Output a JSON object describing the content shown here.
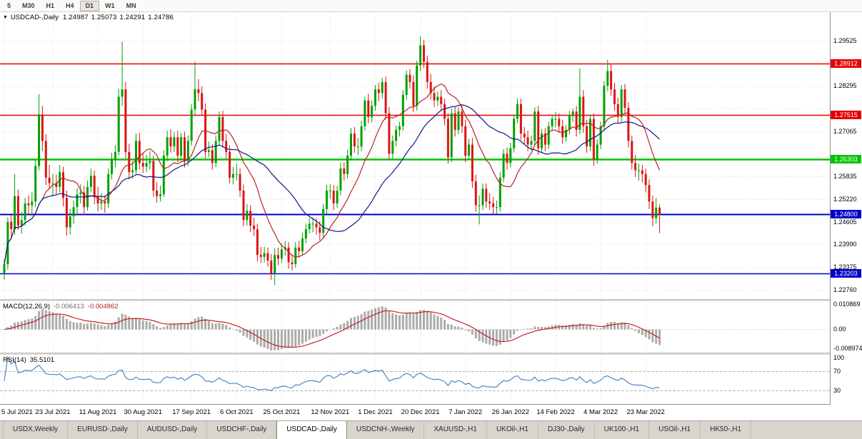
{
  "toolbar": {
    "timeframes": [
      {
        "label": "5",
        "active": false
      },
      {
        "label": "M30",
        "active": false
      },
      {
        "label": "H1",
        "active": false
      },
      {
        "label": "H4",
        "active": false
      },
      {
        "label": "D1",
        "active": true
      },
      {
        "label": "W1",
        "active": false
      },
      {
        "label": "MN",
        "active": false
      }
    ]
  },
  "chart": {
    "collapse_glyph": "▼",
    "symbol_label": "USDCAD-,Daily",
    "ohlc": {
      "open": "1.24987",
      "high": "1.25073",
      "low": "1.24291",
      "close": "1.24786"
    }
  },
  "price_axis": {
    "ticks": [
      "1.29525",
      "1.28295",
      "1.27065",
      "1.25835",
      "1.25220",
      "1.24605",
      "1.23990",
      "1.23375",
      "1.22760"
    ]
  },
  "indicators": {
    "macd": {
      "name": "MACD(12,26,9)",
      "value_main": "-0.006413",
      "value_signal": "-0.004862",
      "fast": 12,
      "slow": 26,
      "signal": 9,
      "ylim": [
        -0.008974,
        0.010869
      ],
      "axis": [
        "0.010869",
        "0.00",
        "-0.008974"
      ]
    },
    "rsi": {
      "name": "RSI(14)",
      "value": "35.5101",
      "period": 14,
      "ylim": [
        0,
        105
      ],
      "levels": [
        70,
        30
      ],
      "axis": [
        "100",
        "70",
        "30"
      ]
    }
  },
  "tabs": {
    "items": [
      "USDX,Weekly",
      "EURUSD-,Daily",
      "AUDUSD-,Daily",
      "USDCHF-,Daily",
      "USDCAD-,Daily",
      "USDCNH-,Weekly",
      "XAUUSD-,H1",
      "UKOil-,H1",
      "DJ30-,Daily",
      "UK100-,H1",
      "USOil-,H1",
      "HK50-,H1"
    ],
    "active_index": 4
  },
  "colors": {
    "bull": "#00A000",
    "bear": "#DC1414",
    "grid": "#E2E2E2",
    "hist": "#ABABAB",
    "signal": "#C01414",
    "rsi_line": "#3E7EC1",
    "rsi_level": "#B9B9B9"
  },
  "chart_data": {
    "type": "candlestick",
    "title": "USDCAD-,Daily",
    "ylim": [
      1.225,
      1.303
    ],
    "grid": {
      "top": 1.29525,
      "step": 0.00615,
      "count": 12
    },
    "x_labels": [
      "5 Jul 2021",
      "23 Jul 2021",
      "11 Aug 2021",
      "30 Aug 2021",
      "17 Sep 2021",
      "6 Oct 2021",
      "25 Oct 2021",
      "12 Nov 2021",
      "1 Dec 2021",
      "20 Dec 2021",
      "7 Jan 2022",
      "26 Jan 2022",
      "14 Feb 2022",
      "4 Mar 2022",
      "23 Mar 2022"
    ],
    "x_label_indices": [
      0,
      14,
      27,
      40,
      54,
      67,
      80,
      94,
      107,
      120,
      133,
      146,
      159,
      172,
      185
    ],
    "overlays": [
      {
        "name": "ma-fast",
        "type": "sma",
        "period": 12,
        "color": "#BB2222"
      },
      {
        "name": "ma-slow",
        "type": "sma",
        "period": 30,
        "color": "#14148C"
      }
    ],
    "h_lines": [
      {
        "price": 1.28912,
        "label": "1.28912",
        "color": "#E60000",
        "width": 1.4
      },
      {
        "price": 1.27515,
        "label": "1.27515",
        "color": "#E60000",
        "width": 1.4
      },
      {
        "price": 1.26303,
        "label": "1.26303",
        "color": "#00C400",
        "width": 2.6
      },
      {
        "price": 1.248,
        "label": "1.24800",
        "color": "#0000C8",
        "width": 2
      },
      {
        "price": 1.23203,
        "label": "1.23203",
        "color": "#0000C8",
        "width": 1.4
      }
    ],
    "candles": [
      [
        1.232,
        1.2358,
        1.2303,
        1.2345
      ],
      [
        1.2345,
        1.2472,
        1.233,
        1.246
      ],
      [
        1.246,
        1.2478,
        1.2415,
        1.244
      ],
      [
        1.244,
        1.259,
        1.2425,
        1.253
      ],
      [
        1.253,
        1.2548,
        1.2438,
        1.245
      ],
      [
        1.245,
        1.2488,
        1.2428,
        1.2465
      ],
      [
        1.2465,
        1.2525,
        1.245,
        1.251
      ],
      [
        1.251,
        1.2532,
        1.248,
        1.2505
      ],
      [
        1.2505,
        1.254,
        1.2482,
        1.2515
      ],
      [
        1.2515,
        1.2628,
        1.25,
        1.2612
      ],
      [
        1.2612,
        1.2807,
        1.26,
        1.2752
      ],
      [
        1.2752,
        1.2775,
        1.2652,
        1.268
      ],
      [
        1.268,
        1.2698,
        1.256,
        1.258
      ],
      [
        1.258,
        1.2615,
        1.2548,
        1.2565
      ],
      [
        1.2565,
        1.259,
        1.253,
        1.2565
      ],
      [
        1.2565,
        1.2588,
        1.2535,
        1.2555
      ],
      [
        1.2555,
        1.2615,
        1.254,
        1.2595
      ],
      [
        1.2595,
        1.261,
        1.2502,
        1.2525
      ],
      [
        1.2525,
        1.2545,
        1.2422,
        1.2445
      ],
      [
        1.2445,
        1.2495,
        1.2425,
        1.2475
      ],
      [
        1.2475,
        1.2518,
        1.2455,
        1.25
      ],
      [
        1.25,
        1.2552,
        1.248,
        1.2535
      ],
      [
        1.2535,
        1.2562,
        1.251,
        1.254
      ],
      [
        1.254,
        1.2558,
        1.2478,
        1.25
      ],
      [
        1.25,
        1.2572,
        1.249,
        1.2555
      ],
      [
        1.2555,
        1.2605,
        1.254,
        1.2585
      ],
      [
        1.2585,
        1.26,
        1.2508,
        1.253
      ],
      [
        1.253,
        1.2555,
        1.2488,
        1.251
      ],
      [
        1.251,
        1.2538,
        1.2492,
        1.2515
      ],
      [
        1.2515,
        1.2532,
        1.2485,
        1.251
      ],
      [
        1.251,
        1.2605,
        1.2498,
        1.259
      ],
      [
        1.259,
        1.2648,
        1.2575,
        1.263
      ],
      [
        1.263,
        1.2668,
        1.2608,
        1.265
      ],
      [
        1.265,
        1.2822,
        1.264,
        1.28
      ],
      [
        1.28,
        1.2949,
        1.2775,
        1.282
      ],
      [
        1.282,
        1.284,
        1.2632,
        1.265
      ],
      [
        1.265,
        1.2672,
        1.2575,
        1.2595
      ],
      [
        1.2595,
        1.2625,
        1.2578,
        1.26
      ],
      [
        1.26,
        1.27,
        1.259,
        1.268
      ],
      [
        1.268,
        1.2702,
        1.2602,
        1.262
      ],
      [
        1.262,
        1.2648,
        1.2592,
        1.261
      ],
      [
        1.261,
        1.2642,
        1.2595,
        1.262
      ],
      [
        1.262,
        1.2652,
        1.2602,
        1.2625
      ],
      [
        1.2625,
        1.264,
        1.2528,
        1.2545
      ],
      [
        1.2545,
        1.2568,
        1.2512,
        1.253
      ],
      [
        1.253,
        1.2558,
        1.2515,
        1.2535
      ],
      [
        1.2535,
        1.2655,
        1.2528,
        1.264
      ],
      [
        1.264,
        1.2708,
        1.2625,
        1.269
      ],
      [
        1.269,
        1.2712,
        1.2648,
        1.2665
      ],
      [
        1.2665,
        1.2705,
        1.265,
        1.269
      ],
      [
        1.269,
        1.2708,
        1.2622,
        1.264
      ],
      [
        1.264,
        1.2702,
        1.2628,
        1.269
      ],
      [
        1.269,
        1.2705,
        1.2608,
        1.2625
      ],
      [
        1.2625,
        1.2695,
        1.2612,
        1.268
      ],
      [
        1.268,
        1.278,
        1.2668,
        1.2765
      ],
      [
        1.2765,
        1.2896,
        1.275,
        1.282
      ],
      [
        1.282,
        1.2848,
        1.2788,
        1.281
      ],
      [
        1.281,
        1.2828,
        1.2748,
        1.2765
      ],
      [
        1.2765,
        1.2782,
        1.2632,
        1.265
      ],
      [
        1.265,
        1.2678,
        1.2635,
        1.2655
      ],
      [
        1.2655,
        1.2672,
        1.2602,
        1.262
      ],
      [
        1.262,
        1.2695,
        1.2608,
        1.268
      ],
      [
        1.268,
        1.276,
        1.2668,
        1.2745
      ],
      [
        1.2745,
        1.2762,
        1.2662,
        1.268
      ],
      [
        1.268,
        1.2698,
        1.2632,
        1.265
      ],
      [
        1.265,
        1.2668,
        1.2565,
        1.258
      ],
      [
        1.258,
        1.261,
        1.2562,
        1.259
      ],
      [
        1.259,
        1.2618,
        1.2572,
        1.259
      ],
      [
        1.259,
        1.2605,
        1.2528,
        1.2545
      ],
      [
        1.2545,
        1.2562,
        1.2448,
        1.2465
      ],
      [
        1.2465,
        1.2508,
        1.245,
        1.249
      ],
      [
        1.249,
        1.2505,
        1.2432,
        1.245
      ],
      [
        1.245,
        1.2472,
        1.2422,
        1.244
      ],
      [
        1.244,
        1.2455,
        1.2352,
        1.237
      ],
      [
        1.237,
        1.2392,
        1.2348,
        1.2365
      ],
      [
        1.2365,
        1.2392,
        1.235,
        1.2375
      ],
      [
        1.2375,
        1.239,
        1.2338,
        1.2355
      ],
      [
        1.2355,
        1.2372,
        1.2302,
        1.232
      ],
      [
        1.232,
        1.2388,
        1.2288,
        1.237
      ],
      [
        1.237,
        1.239,
        1.2342,
        1.236
      ],
      [
        1.236,
        1.2402,
        1.2348,
        1.2385
      ],
      [
        1.2385,
        1.2408,
        1.2368,
        1.239
      ],
      [
        1.239,
        1.2405,
        1.2332,
        1.235
      ],
      [
        1.235,
        1.2372,
        1.2328,
        1.2345
      ],
      [
        1.2345,
        1.2405,
        1.2335,
        1.239
      ],
      [
        1.239,
        1.2408,
        1.2362,
        1.238
      ],
      [
        1.238,
        1.243,
        1.2368,
        1.2415
      ],
      [
        1.2415,
        1.2455,
        1.2402,
        1.244
      ],
      [
        1.244,
        1.247,
        1.2428,
        1.2455
      ],
      [
        1.2455,
        1.2472,
        1.2432,
        1.2455
      ],
      [
        1.2455,
        1.247,
        1.2425,
        1.2445
      ],
      [
        1.2445,
        1.2462,
        1.241,
        1.243
      ],
      [
        1.243,
        1.2508,
        1.2418,
        1.2495
      ],
      [
        1.2495,
        1.256,
        1.2482,
        1.2545
      ],
      [
        1.2545,
        1.2562,
        1.2522,
        1.2545
      ],
      [
        1.2545,
        1.256,
        1.2492,
        1.251
      ],
      [
        1.251,
        1.2558,
        1.2498,
        1.2545
      ],
      [
        1.2545,
        1.262,
        1.2532,
        1.2605
      ],
      [
        1.2605,
        1.2622,
        1.2572,
        1.259
      ],
      [
        1.259,
        1.2655,
        1.2578,
        1.264
      ],
      [
        1.264,
        1.2715,
        1.2628,
        1.27
      ],
      [
        1.27,
        1.2718,
        1.2648,
        1.2665
      ],
      [
        1.2665,
        1.2688,
        1.2642,
        1.2665
      ],
      [
        1.2665,
        1.2735,
        1.2652,
        1.272
      ],
      [
        1.272,
        1.28,
        1.2708,
        1.279
      ],
      [
        1.279,
        1.2808,
        1.2728,
        1.2745
      ],
      [
        1.2745,
        1.279,
        1.273,
        1.2775
      ],
      [
        1.2775,
        1.2832,
        1.2762,
        1.282
      ],
      [
        1.282,
        1.2838,
        1.2788,
        1.281
      ],
      [
        1.281,
        1.2852,
        1.2795,
        1.284
      ],
      [
        1.284,
        1.2855,
        1.2738,
        1.2755
      ],
      [
        1.2755,
        1.2772,
        1.2628,
        1.2645
      ],
      [
        1.2645,
        1.2695,
        1.2632,
        1.268
      ],
      [
        1.268,
        1.2722,
        1.2665,
        1.271
      ],
      [
        1.271,
        1.2732,
        1.2692,
        1.272
      ],
      [
        1.272,
        1.2818,
        1.2708,
        1.2805
      ],
      [
        1.2805,
        1.2872,
        1.2792,
        1.286
      ],
      [
        1.286,
        1.2875,
        1.2822,
        1.284
      ],
      [
        1.284,
        1.2858,
        1.2758,
        1.2775
      ],
      [
        1.2775,
        1.2898,
        1.2762,
        1.2885
      ],
      [
        1.2885,
        1.2964,
        1.287,
        1.294
      ],
      [
        1.294,
        1.2955,
        1.2878,
        1.2895
      ],
      [
        1.2895,
        1.2912,
        1.2822,
        1.284
      ],
      [
        1.284,
        1.2862,
        1.2792,
        1.281
      ],
      [
        1.281,
        1.2828,
        1.2772,
        1.279
      ],
      [
        1.279,
        1.2815,
        1.2775,
        1.28
      ],
      [
        1.28,
        1.2818,
        1.2762,
        1.278
      ],
      [
        1.278,
        1.2795,
        1.2722,
        1.274
      ],
      [
        1.274,
        1.2755,
        1.2618,
        1.2635
      ],
      [
        1.2635,
        1.2768,
        1.2622,
        1.2755
      ],
      [
        1.2755,
        1.2772,
        1.2692,
        1.271
      ],
      [
        1.271,
        1.2772,
        1.2698,
        1.276
      ],
      [
        1.276,
        1.2778,
        1.2702,
        1.272
      ],
      [
        1.272,
        1.2738,
        1.2622,
        1.264
      ],
      [
        1.264,
        1.2685,
        1.2628,
        1.267
      ],
      [
        1.267,
        1.2688,
        1.2552,
        1.257
      ],
      [
        1.257,
        1.2588,
        1.2487,
        1.2505
      ],
      [
        1.2505,
        1.2532,
        1.2453,
        1.2505
      ],
      [
        1.2505,
        1.2565,
        1.2492,
        1.255
      ],
      [
        1.255,
        1.2565,
        1.2498,
        1.2515
      ],
      [
        1.2515,
        1.2538,
        1.2492,
        1.251
      ],
      [
        1.251,
        1.2528,
        1.2482,
        1.25
      ],
      [
        1.25,
        1.2518,
        1.2482,
        1.25
      ],
      [
        1.25,
        1.2595,
        1.2488,
        1.258
      ],
      [
        1.258,
        1.2658,
        1.2568,
        1.2645
      ],
      [
        1.2645,
        1.2662,
        1.2602,
        1.262
      ],
      [
        1.262,
        1.2675,
        1.2608,
        1.266
      ],
      [
        1.266,
        1.2752,
        1.2648,
        1.274
      ],
      [
        1.274,
        1.2796,
        1.2728,
        1.278
      ],
      [
        1.278,
        1.2795,
        1.2682,
        1.27
      ],
      [
        1.27,
        1.2718,
        1.2672,
        1.269
      ],
      [
        1.269,
        1.2708,
        1.2652,
        1.267
      ],
      [
        1.267,
        1.2695,
        1.2655,
        1.268
      ],
      [
        1.268,
        1.2772,
        1.2668,
        1.276
      ],
      [
        1.276,
        1.2775,
        1.2642,
        1.266
      ],
      [
        1.266,
        1.2712,
        1.2648,
        1.27
      ],
      [
        1.27,
        1.2715,
        1.2652,
        1.267
      ],
      [
        1.267,
        1.2732,
        1.2658,
        1.272
      ],
      [
        1.272,
        1.2752,
        1.2708,
        1.274
      ],
      [
        1.274,
        1.2758,
        1.2718,
        1.274
      ],
      [
        1.274,
        1.2755,
        1.2702,
        1.272
      ],
      [
        1.272,
        1.2738,
        1.2672,
        1.269
      ],
      [
        1.269,
        1.2722,
        1.2678,
        1.271
      ],
      [
        1.271,
        1.2762,
        1.2698,
        1.275
      ],
      [
        1.275,
        1.2768,
        1.2732,
        1.276
      ],
      [
        1.276,
        1.2775,
        1.2692,
        1.271
      ],
      [
        1.271,
        1.2877,
        1.2698,
        1.28
      ],
      [
        1.28,
        1.2818,
        1.2702,
        1.272
      ],
      [
        1.272,
        1.2738,
        1.2648,
        1.2665
      ],
      [
        1.2665,
        1.2752,
        1.2652,
        1.274
      ],
      [
        1.274,
        1.2755,
        1.2612,
        1.263
      ],
      [
        1.263,
        1.2685,
        1.2618,
        1.267
      ],
      [
        1.267,
        1.2732,
        1.2658,
        1.272
      ],
      [
        1.272,
        1.2842,
        1.2708,
        1.283
      ],
      [
        1.283,
        1.2901,
        1.2815,
        1.287
      ],
      [
        1.287,
        1.2888,
        1.2802,
        1.282
      ],
      [
        1.282,
        1.2838,
        1.2762,
        1.278
      ],
      [
        1.278,
        1.2798,
        1.2728,
        1.2745
      ],
      [
        1.2745,
        1.2832,
        1.2732,
        1.282
      ],
      [
        1.282,
        1.2835,
        1.2752,
        1.277
      ],
      [
        1.277,
        1.2785,
        1.2662,
        1.268
      ],
      [
        1.268,
        1.2695,
        1.2602,
        1.262
      ],
      [
        1.262,
        1.2642,
        1.2582,
        1.26
      ],
      [
        1.26,
        1.2618,
        1.2572,
        1.26
      ],
      [
        1.26,
        1.2615,
        1.2568,
        1.259
      ],
      [
        1.259,
        1.2605,
        1.254,
        1.256
      ],
      [
        1.256,
        1.2575,
        1.2495,
        1.2515
      ],
      [
        1.2515,
        1.2532,
        1.2448,
        1.247
      ],
      [
        1.247,
        1.2525,
        1.2455,
        1.24987
      ],
      [
        1.24987,
        1.25073,
        1.24291,
        1.24786
      ]
    ]
  }
}
